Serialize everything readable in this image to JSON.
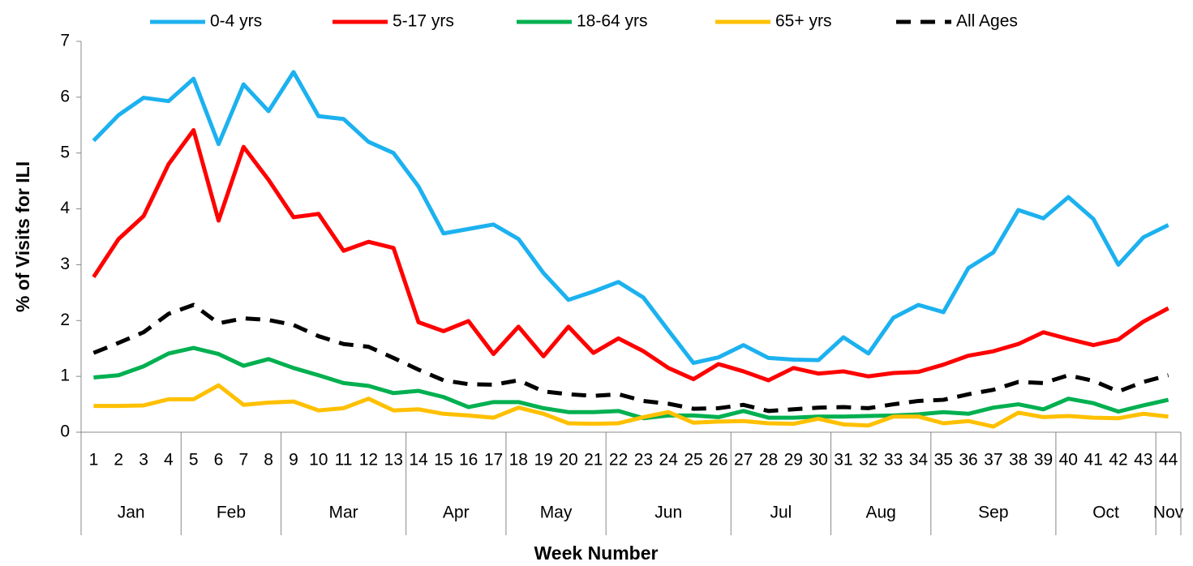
{
  "chart_data": {
    "type": "line",
    "xlabel": "Week Number",
    "ylabel": "% of Visits for ILI",
    "categories": [
      "1",
      "2",
      "3",
      "4",
      "5",
      "6",
      "7",
      "8",
      "9",
      "10",
      "11",
      "12",
      "13",
      "14",
      "15",
      "16",
      "17",
      "18",
      "19",
      "20",
      "21",
      "22",
      "23",
      "24",
      "25",
      "26",
      "27",
      "28",
      "29",
      "30",
      "31",
      "32",
      "33",
      "34",
      "35",
      "36",
      "37",
      "38",
      "39",
      "40",
      "41",
      "42",
      "43",
      "44"
    ],
    "months": [
      "Jan",
      null,
      null,
      null,
      "Feb",
      null,
      null,
      null,
      "Mar",
      null,
      null,
      null,
      null,
      "Apr",
      null,
      null,
      null,
      "May",
      null,
      null,
      null,
      "Jun",
      null,
      null,
      null,
      null,
      "Jul",
      null,
      null,
      null,
      "Aug",
      null,
      null,
      null,
      "Sep",
      null,
      null,
      null,
      null,
      "Oct",
      null,
      null,
      null,
      "Nov"
    ],
    "ylim": [
      0,
      7
    ],
    "yticks": [
      0,
      1,
      2,
      3,
      4,
      5,
      6,
      7
    ],
    "legend": "top",
    "series": [
      {
        "name": "0-4 yrs",
        "color": "#1cb1ef",
        "values": [
          5.22,
          5.68,
          5.99,
          5.93,
          6.33,
          5.16,
          6.23,
          5.75,
          6.45,
          5.66,
          5.61,
          5.2,
          5.0,
          4.4,
          3.56,
          3.64,
          3.72,
          3.46,
          2.85,
          2.37,
          2.52,
          2.69,
          2.41,
          1.82,
          1.24,
          1.34,
          1.56,
          1.33,
          1.3,
          1.29,
          1.7,
          1.41,
          2.05,
          2.28,
          2.15,
          2.94,
          3.22,
          3.98,
          3.83,
          4.21,
          3.82,
          3.0,
          3.49,
          3.71
        ]
      },
      {
        "name": "5-17 yrs",
        "color": "#ff0000",
        "values": [
          2.78,
          3.46,
          3.87,
          4.8,
          5.41,
          3.79,
          5.11,
          4.52,
          3.85,
          3.91,
          3.25,
          3.41,
          3.3,
          1.97,
          1.81,
          1.99,
          1.4,
          1.89,
          1.36,
          1.89,
          1.42,
          1.68,
          1.45,
          1.15,
          0.95,
          1.22,
          1.09,
          0.93,
          1.15,
          1.05,
          1.09,
          1.0,
          1.06,
          1.08,
          1.21,
          1.37,
          1.45,
          1.58,
          1.79,
          1.67,
          1.56,
          1.66,
          1.98,
          2.22
        ]
      },
      {
        "name": "18-64 yrs",
        "color": "#00b050",
        "values": [
          0.98,
          1.02,
          1.18,
          1.41,
          1.51,
          1.4,
          1.19,
          1.31,
          1.15,
          1.02,
          0.88,
          0.83,
          0.7,
          0.74,
          0.63,
          0.45,
          0.54,
          0.54,
          0.43,
          0.36,
          0.36,
          0.38,
          0.25,
          0.3,
          0.3,
          0.27,
          0.38,
          0.26,
          0.26,
          0.28,
          0.28,
          0.29,
          0.3,
          0.32,
          0.36,
          0.33,
          0.44,
          0.5,
          0.41,
          0.6,
          0.52,
          0.37,
          0.48,
          0.58
        ]
      },
      {
        "name": "65+ yrs",
        "color": "#ffc000",
        "values": [
          0.47,
          0.47,
          0.48,
          0.59,
          0.59,
          0.84,
          0.49,
          0.53,
          0.55,
          0.39,
          0.43,
          0.6,
          0.39,
          0.41,
          0.33,
          0.3,
          0.26,
          0.44,
          0.33,
          0.16,
          0.15,
          0.16,
          0.27,
          0.36,
          0.17,
          0.19,
          0.2,
          0.16,
          0.15,
          0.24,
          0.14,
          0.12,
          0.28,
          0.28,
          0.16,
          0.2,
          0.1,
          0.35,
          0.27,
          0.29,
          0.26,
          0.25,
          0.33,
          0.28
        ]
      },
      {
        "name": "All Ages",
        "color": "#000000",
        "dash": true,
        "values": [
          1.42,
          1.6,
          1.79,
          2.12,
          2.28,
          1.95,
          2.04,
          2.01,
          1.92,
          1.72,
          1.58,
          1.53,
          1.33,
          1.12,
          0.93,
          0.86,
          0.85,
          0.93,
          0.73,
          0.68,
          0.65,
          0.68,
          0.56,
          0.51,
          0.42,
          0.43,
          0.49,
          0.38,
          0.41,
          0.44,
          0.45,
          0.43,
          0.5,
          0.56,
          0.58,
          0.68,
          0.76,
          0.9,
          0.88,
          1.02,
          0.92,
          0.73,
          0.9,
          1.02
        ]
      }
    ]
  }
}
